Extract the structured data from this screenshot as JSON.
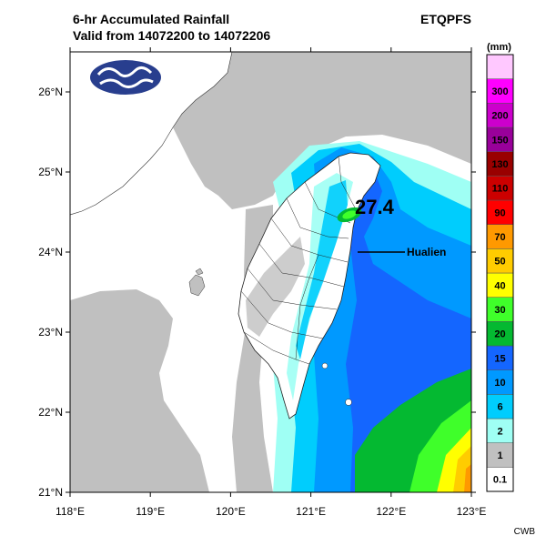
{
  "header": {
    "title_line1": "6-hr Accumulated Rainfall",
    "title_line2": "Valid from 14072200 to 14072206",
    "model": "ETQPFS"
  },
  "footer": {
    "credit": "CWB"
  },
  "logo": {
    "icon": "cwb-logo-icon",
    "fill": "#283e8e"
  },
  "map": {
    "lon_ticks": [
      "118°E",
      "119°E",
      "120°E",
      "121°E",
      "122°E",
      "123°E"
    ],
    "lat_ticks": [
      "21°N",
      "22°N",
      "23°N",
      "24°N",
      "25°N",
      "26°N"
    ],
    "max_value": "27.4",
    "city_label": "Hualien",
    "land_color": "#ffffff",
    "coast_color": "#333333"
  },
  "legend": {
    "unit": "(mm)",
    "levels": [
      {
        "label": "0.1",
        "color": "#ffffff"
      },
      {
        "label": "1",
        "color": "#c0c0c0"
      },
      {
        "label": "2",
        "color": "#9ffff4"
      },
      {
        "label": "6",
        "color": "#00cdfd"
      },
      {
        "label": "10",
        "color": "#0099ff"
      },
      {
        "label": "15",
        "color": "#1466ff"
      },
      {
        "label": "20",
        "color": "#04b931"
      },
      {
        "label": "30",
        "color": "#3fff2a"
      },
      {
        "label": "40",
        "color": "#ffff00"
      },
      {
        "label": "50",
        "color": "#ffcc00"
      },
      {
        "label": "70",
        "color": "#ff9900"
      },
      {
        "label": "90",
        "color": "#ff0000"
      },
      {
        "label": "110",
        "color": "#cc0000"
      },
      {
        "label": "130",
        "color": "#990000"
      },
      {
        "label": "150",
        "color": "#99009a"
      },
      {
        "label": "200",
        "color": "#cc00cc"
      },
      {
        "label": "300",
        "color": "#ff00ff"
      },
      {
        "label": "",
        "color": "#ffc8ff"
      }
    ]
  }
}
